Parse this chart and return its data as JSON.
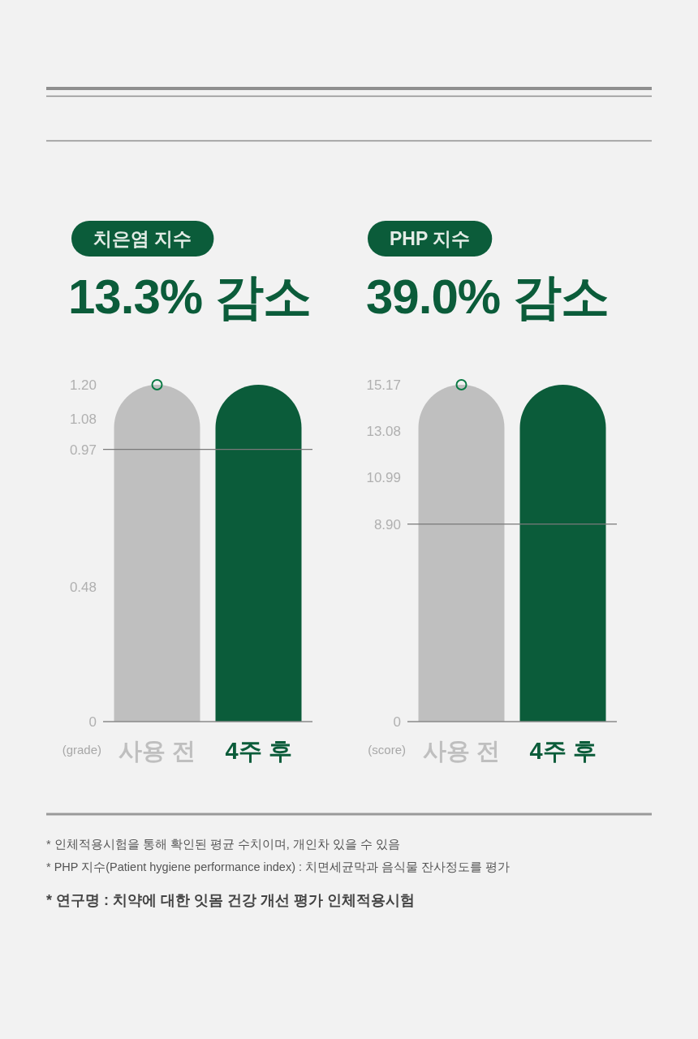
{
  "chart_data": [
    {
      "type": "bar",
      "title": "치은염 지수",
      "subtitle": "13.3% 감소",
      "ylabel": "(grade)",
      "categories": [
        "사용 전",
        "4주 후"
      ],
      "series": [
        {
          "type": "bar",
          "colors": [
            "#bfbfbf",
            "#0b5c3a"
          ],
          "values": [
            1.2,
            1.2
          ]
        },
        {
          "type": "scatter",
          "color": "#0b7a45",
          "marker": "circle",
          "values": [
            1.2,
            null
          ]
        }
      ],
      "ylim": [
        0,
        1.2
      ],
      "yticks": [
        0,
        0.48,
        0.97,
        1.08,
        {
          "value": 1.2,
          "label": "1.20"
        }
      ],
      "ref_lines": [
        {
          "axis": "y",
          "value": 0.97,
          "color": "#7a7a7a"
        }
      ]
    },
    {
      "type": "bar",
      "title": "PHP 지수",
      "subtitle": "39.0% 감소",
      "ylabel": "(score)",
      "categories": [
        "사용 전",
        "4주 후"
      ],
      "series": [
        {
          "type": "bar",
          "colors": [
            "#bfbfbf",
            "#0b5c3a"
          ],
          "values": [
            15.17,
            15.17
          ]
        },
        {
          "type": "scatter",
          "color": "#0b7a45",
          "marker": "circle",
          "values": [
            15.17,
            null
          ]
        }
      ],
      "ylim": [
        0,
        15.17
      ],
      "yticks": [
        0,
        {
          "value": 8.9,
          "label": "8.90"
        },
        10.99,
        13.08,
        15.17
      ],
      "ref_lines": [
        {
          "axis": "y",
          "value": 8.9,
          "color": "#7a7a7a"
        }
      ],
      "annotations": [
        "* 인체적용시험을 통해 확인된 평균 수치이며, 개인차 있을 수 있음",
        "* PHP 지수(Patient hygiene performance index) : 치면세균막과 음식물 잔사정도를 평가",
        "* 연구명 : 치약에 대한 잇몸 건강 개선 평가 인체적용시험"
      ]
    }
  ]
}
